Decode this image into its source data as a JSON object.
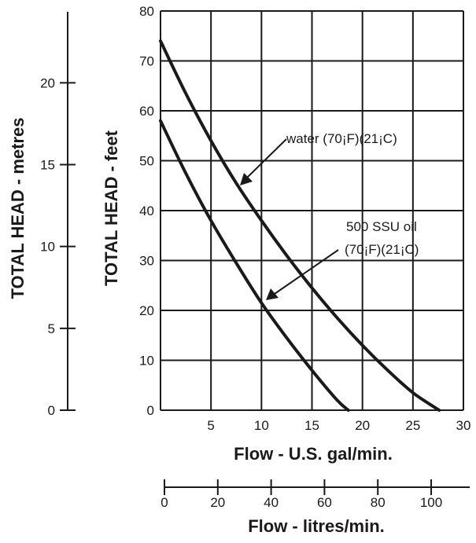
{
  "chart_data": {
    "type": "line",
    "x": [
      0,
      2.5,
      5,
      7.5,
      10,
      12.5,
      15,
      17.5,
      20,
      22.5,
      25,
      27.6
    ],
    "series": [
      {
        "values": [
          74,
          63.5,
          54,
          45.5,
          38,
          31,
          24.5,
          18.5,
          13,
          8,
          3.5,
          0
        ]
      },
      {
        "values": [
          58,
          47.5,
          38,
          29.5,
          21.5,
          14.5,
          8,
          2,
          null,
          null,
          null,
          null
        ]
      }
    ],
    "xlabel": "Flow - U.S. gal/min.",
    "ylabel": "TOTAL HEAD - feet",
    "xlim": [
      0,
      30
    ],
    "ylim": [
      0,
      80
    ],
    "xticks": [
      "5",
      "10",
      "15",
      "20",
      "25",
      "30"
    ],
    "yticks": [
      "0",
      "10",
      "20",
      "30",
      "40",
      "50",
      "60",
      "70",
      "80"
    ],
    "grid": true,
    "secondary_y_axis": {
      "label": "TOTAL HEAD - metres",
      "ticks": [
        "0",
        "5",
        "10",
        "15",
        "20"
      ]
    },
    "secondary_x_axis": {
      "label": "Flow - litres/min.",
      "ticks": [
        "0",
        "20",
        "40",
        "60",
        "80",
        "100"
      ]
    },
    "annotations": [
      {
        "text": "water (70¡F)(21¡C)",
        "series": 0
      },
      {
        "line1": "500 SSU oil",
        "line2": "(70¡F)(21¡C)",
        "series": 1
      }
    ]
  }
}
